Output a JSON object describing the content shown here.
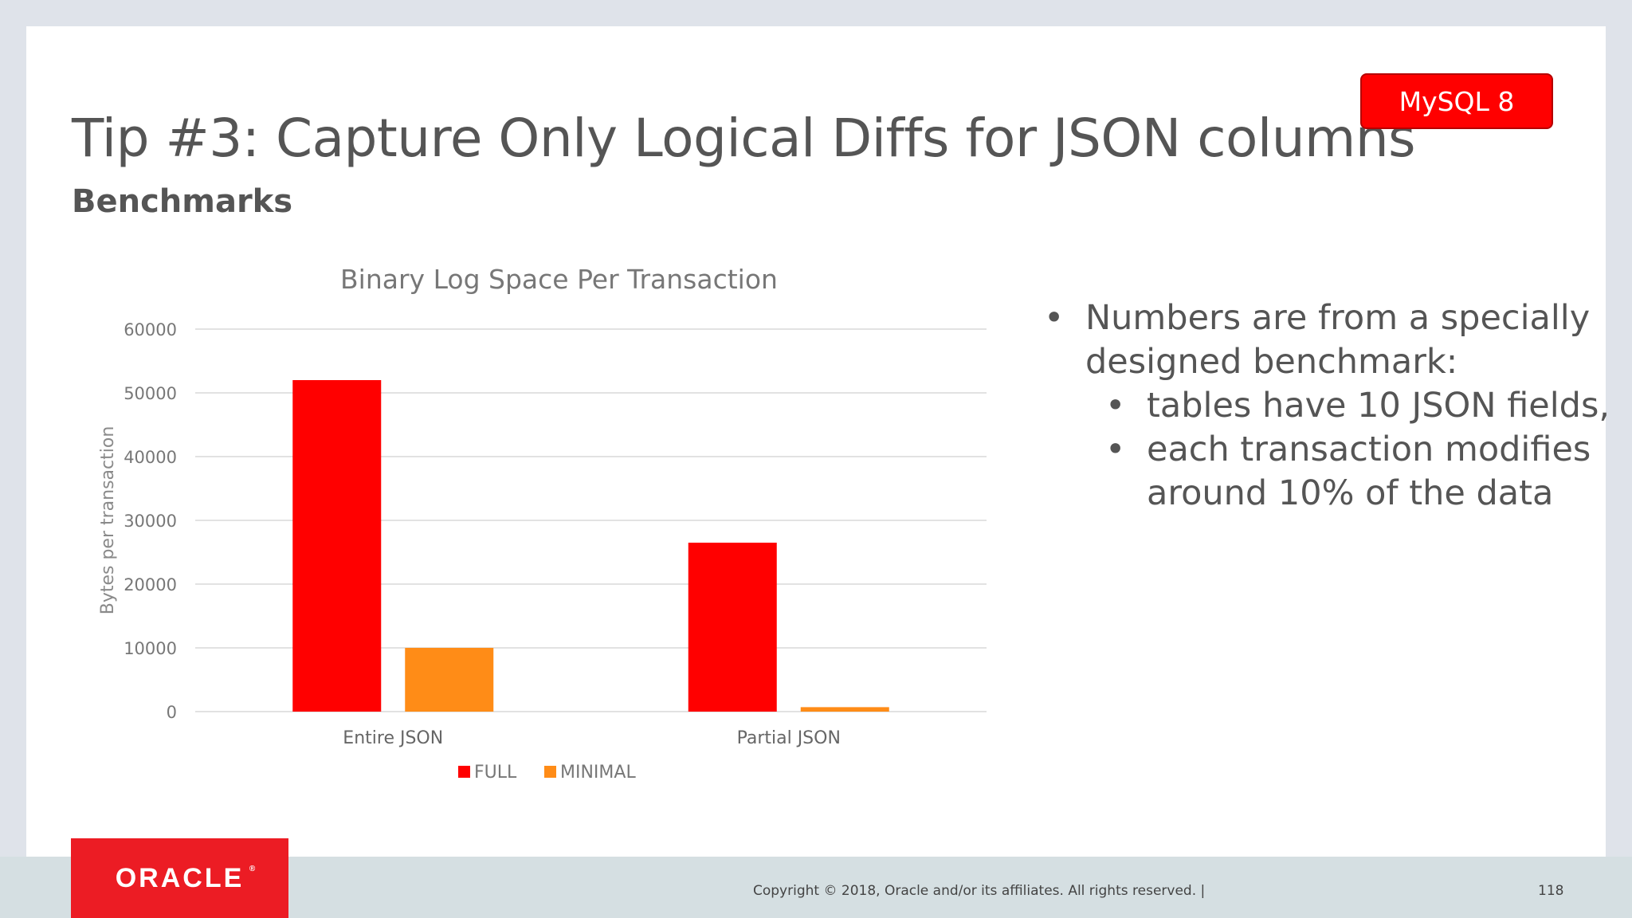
{
  "slide": {
    "title": "Tip #3: Capture Only Logical Diffs for JSON columns",
    "subtitle": "Benchmarks",
    "badge": "MySQL 8"
  },
  "bullets": [
    {
      "level": 1,
      "lines": [
        "Numbers are from a specially",
        "designed benchmark:"
      ]
    },
    {
      "level": 2,
      "lines": [
        "tables have 10 JSON fields,"
      ]
    },
    {
      "level": 2,
      "lines": [
        "each transaction modifies",
        "around 10% of the data"
      ]
    }
  ],
  "footer": {
    "logo": "ORACLE",
    "copyright": "Copyright © 2018, Oracle and/or its affiliates. All rights reserved.  |",
    "page": "118"
  },
  "colors": {
    "full": "#ff0000",
    "minimal": "#ff8c17",
    "logo_bg": "#ec1c24"
  },
  "chart_data": {
    "type": "bar",
    "title": "Binary Log Space Per Transaction",
    "xlabel": "",
    "ylabel": "Bytes per transaction",
    "categories": [
      "Entire JSON",
      "Partial JSON"
    ],
    "series": [
      {
        "name": "FULL",
        "values": [
          52000,
          26500
        ],
        "color": "#ff0000"
      },
      {
        "name": "MINIMAL",
        "values": [
          10000,
          700
        ],
        "color": "#ff8c17"
      }
    ],
    "ylim": [
      0,
      60000
    ],
    "yticks": [
      0,
      10000,
      20000,
      30000,
      40000,
      50000,
      60000
    ],
    "grid": true,
    "legend": "bottom"
  }
}
